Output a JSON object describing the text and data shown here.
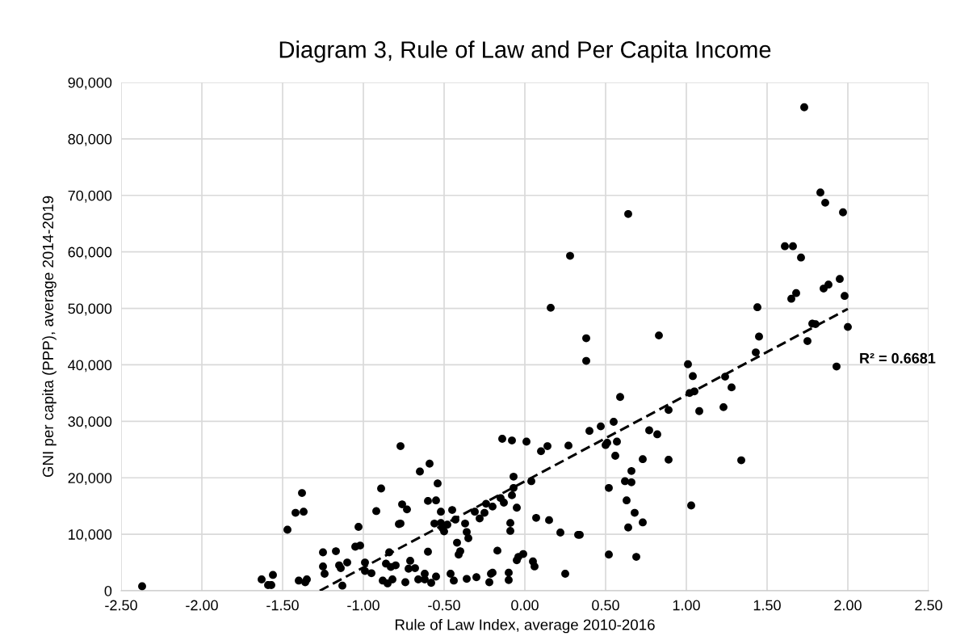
{
  "chart_data": {
    "type": "scatter",
    "title": "Diagram 3, Rule of Law and Per Capita Income",
    "xlabel": "Rule of Law Index, average 2010-2016",
    "ylabel": "GNI per capita (PPP), average 2014-2019",
    "xlim": [
      -2.5,
      2.5
    ],
    "xticks": [
      {
        "value": -2.5,
        "label": "-2.50"
      },
      {
        "value": -2.0,
        "label": "-2.00"
      },
      {
        "value": -1.5,
        "label": "-1.50"
      },
      {
        "value": -1.0,
        "label": "-1.00"
      },
      {
        "value": -0.5,
        "label": "-0.50"
      },
      {
        "value": 0,
        "label": "0.00"
      },
      {
        "value": 0.5,
        "label": "0.50"
      },
      {
        "value": 1.0,
        "label": "1.00"
      },
      {
        "value": 1.5,
        "label": "1.50"
      },
      {
        "value": 2.0,
        "label": "2.00"
      },
      {
        "value": 2.5,
        "label": "2.50"
      }
    ],
    "ylim": [
      0,
      90000
    ],
    "yticks": [
      0,
      {
        "value": 10000,
        "label": "10,000"
      },
      {
        "value": 20000,
        "label": "20,000"
      },
      {
        "value": 30000,
        "label": "30,000"
      },
      {
        "value": 40000,
        "label": "40,000"
      },
      {
        "value": 50000,
        "label": "50,000"
      },
      {
        "value": 60000,
        "label": "60,000"
      },
      {
        "value": 70000,
        "label": "70,000"
      },
      {
        "value": 80000,
        "label": "80,000"
      },
      {
        "value": 90000,
        "label": "90,000"
      }
    ],
    "grid": true,
    "marker": "circle",
    "series": [
      {
        "color": "#000000",
        "x": [
          -2.37,
          -1.63,
          -1.59,
          -1.57,
          -1.56,
          -1.47,
          -1.42,
          -1.38,
          -1.37,
          -1.4,
          -1.36,
          -1.35,
          -1.25,
          -1.25,
          -1.24,
          -1.17,
          -1.15,
          -1.14,
          -1.13,
          -1.1,
          -1.05,
          -1.03,
          -1.02,
          -0.99,
          -0.99,
          -0.95,
          -0.92,
          -0.89,
          -0.88,
          -0.86,
          -0.85,
          -0.84,
          -0.83,
          -0.82,
          -0.8,
          -0.78,
          -0.77,
          -0.77,
          -0.76,
          -0.73,
          -0.71,
          -0.72,
          -0.74,
          -0.68,
          -0.66,
          -0.65,
          -0.62,
          -0.62,
          -0.6,
          -0.59,
          -0.6,
          -0.58,
          -0.55,
          -0.56,
          -0.55,
          -0.54,
          -0.52,
          -0.52,
          -0.51,
          -0.5,
          -0.48,
          -0.46,
          -0.45,
          -0.44,
          -0.43,
          -0.42,
          -0.41,
          -0.4,
          -0.37,
          -0.36,
          -0.36,
          -0.35,
          -0.31,
          -0.3,
          -0.28,
          -0.25,
          -0.24,
          -0.22,
          -0.21,
          -0.2,
          -0.2,
          -0.17,
          -0.15,
          -0.14,
          -0.13,
          -0.1,
          -0.1,
          -0.09,
          -0.08,
          -0.09,
          -0.08,
          -0.07,
          -0.07,
          -0.05,
          -0.05,
          -0.04,
          -0.01,
          0.01,
          0.04,
          0.05,
          0.06,
          0.07,
          0.1,
          0.14,
          0.15,
          0.16,
          0.22,
          0.25,
          0.27,
          0.28,
          0.33,
          0.34,
          0.38,
          0.38,
          0.4,
          0.47,
          0.5,
          0.51,
          0.52,
          0.52,
          0.55,
          0.56,
          0.57,
          0.59,
          0.62,
          0.63,
          0.64,
          0.64,
          0.66,
          0.66,
          0.68,
          0.69,
          0.73,
          0.73,
          0.77,
          0.82,
          0.83,
          0.89,
          0.89,
          1.01,
          1.02,
          1.03,
          1.04,
          1.05,
          1.08,
          1.23,
          1.24,
          1.28,
          1.34,
          1.43,
          1.44,
          1.45,
          1.61,
          1.65,
          1.66,
          1.68,
          1.71,
          1.73,
          1.75,
          1.78,
          1.8,
          1.83,
          1.85,
          1.86,
          1.88,
          1.93,
          1.95,
          1.97,
          1.98,
          2.0
        ],
        "values": [
          800,
          2000,
          1000,
          1000,
          2800,
          10800,
          13800,
          17300,
          14000,
          1800,
          1500,
          2000,
          6800,
          4300,
          3000,
          7000,
          4500,
          4000,
          900,
          5000,
          7800,
          11300,
          8000,
          5000,
          3500,
          3100,
          14100,
          18100,
          1800,
          4800,
          1300,
          6800,
          4200,
          2000,
          4500,
          11800,
          11900,
          25600,
          15300,
          14400,
          5300,
          3900,
          1500,
          4000,
          2000,
          21100,
          2000,
          3000,
          15900,
          22500,
          6900,
          1400,
          2500,
          11900,
          16000,
          19000,
          14000,
          12000,
          11100,
          10500,
          11700,
          3000,
          14300,
          1800,
          12600,
          8500,
          6400,
          7000,
          11900,
          2100,
          10400,
          9300,
          14000,
          2400,
          12800,
          13800,
          15400,
          1500,
          3000,
          3200,
          14900,
          7100,
          16400,
          26900,
          15600,
          3200,
          1900,
          12000,
          16900,
          10600,
          26600,
          20200,
          18200,
          14700,
          5400,
          6000,
          6500,
          26400,
          19400,
          5200,
          4300,
          12900,
          24700,
          25600,
          12500,
          50100,
          10300,
          3000,
          25700,
          59300,
          9900,
          9900,
          44700,
          40700,
          28300,
          29100,
          25800,
          26200,
          18200,
          6400,
          29900,
          23900,
          26400,
          34300,
          19400,
          16000,
          11200,
          66700,
          19200,
          21200,
          13800,
          6000,
          12100,
          23300,
          28400,
          27700,
          45200,
          23200,
          32000,
          40100,
          35000,
          15100,
          38000,
          35300,
          31800,
          32500,
          37900,
          36000,
          23100,
          42200,
          50200,
          45000,
          61000,
          51700,
          61000,
          52700,
          59000,
          85600,
          44200,
          47300,
          47200,
          70500,
          53500,
          68700,
          54200,
          39700,
          55200,
          67000,
          52200,
          46700
        ]
      },
      {
        "type": "line",
        "color": "#000000",
        "line_style": "dashed",
        "marker": "none",
        "x": [
          -1.27,
          2.0
        ],
        "values": [
          0,
          49900
        ]
      }
    ],
    "annotations": [
      "R² = 0.6681"
    ]
  }
}
